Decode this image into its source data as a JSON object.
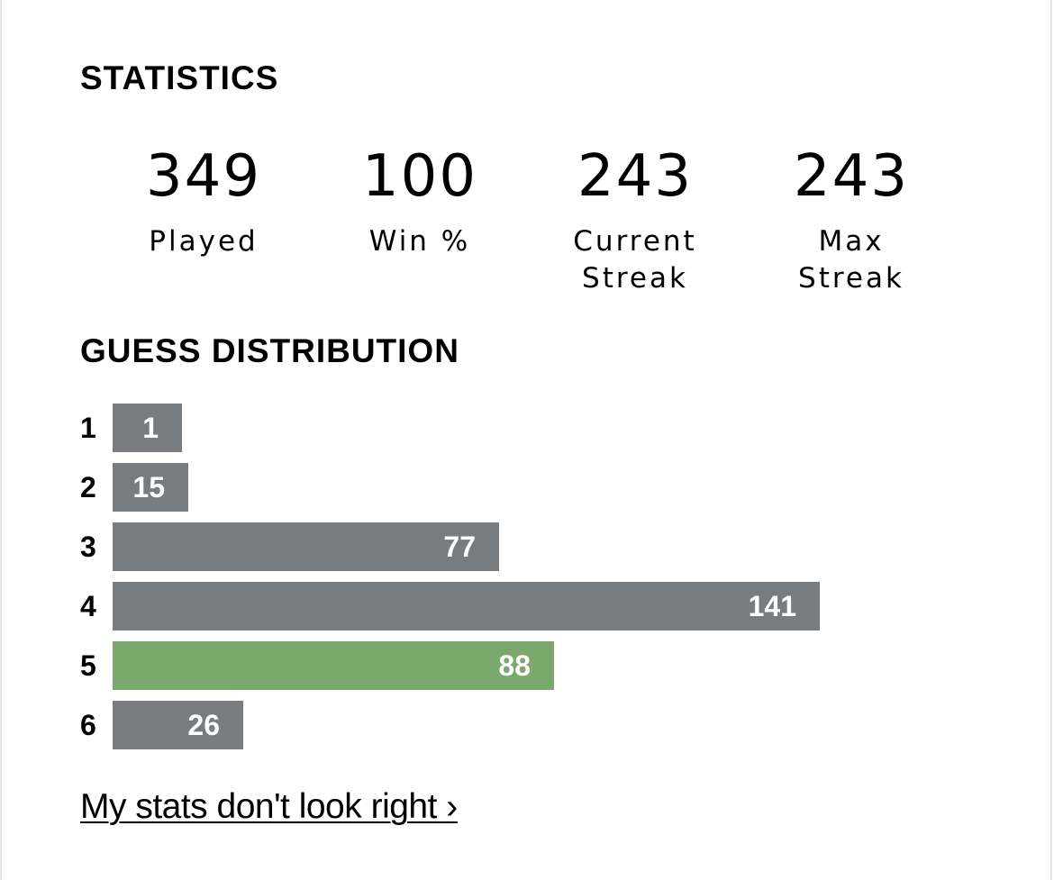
{
  "statistics": {
    "title": "STATISTICS",
    "items": [
      {
        "value": "349",
        "label": "Played"
      },
      {
        "value": "100",
        "label": "Win %"
      },
      {
        "value": "243",
        "label": "Current\nStreak"
      },
      {
        "value": "243",
        "label": "Max\nStreak"
      }
    ]
  },
  "guess_distribution": {
    "title": "GUESS DISTRIBUTION",
    "highlight_color": "#7aa86d",
    "bar_color": "#787c7e",
    "rows": [
      {
        "guess": "1",
        "count": "1",
        "highlighted": false
      },
      {
        "guess": "2",
        "count": "15",
        "highlighted": false
      },
      {
        "guess": "3",
        "count": "77",
        "highlighted": false
      },
      {
        "guess": "4",
        "count": "141",
        "highlighted": false
      },
      {
        "guess": "5",
        "count": "88",
        "highlighted": true
      },
      {
        "guess": "6",
        "count": "26",
        "highlighted": false
      }
    ]
  },
  "chart_data": {
    "type": "bar",
    "categories": [
      "1",
      "2",
      "3",
      "4",
      "5",
      "6"
    ],
    "values": [
      1,
      15,
      77,
      141,
      88,
      26
    ],
    "title": "GUESS DISTRIBUTION",
    "highlighted_category": "5"
  },
  "footer": {
    "link_text": "My stats don't look right ›"
  }
}
